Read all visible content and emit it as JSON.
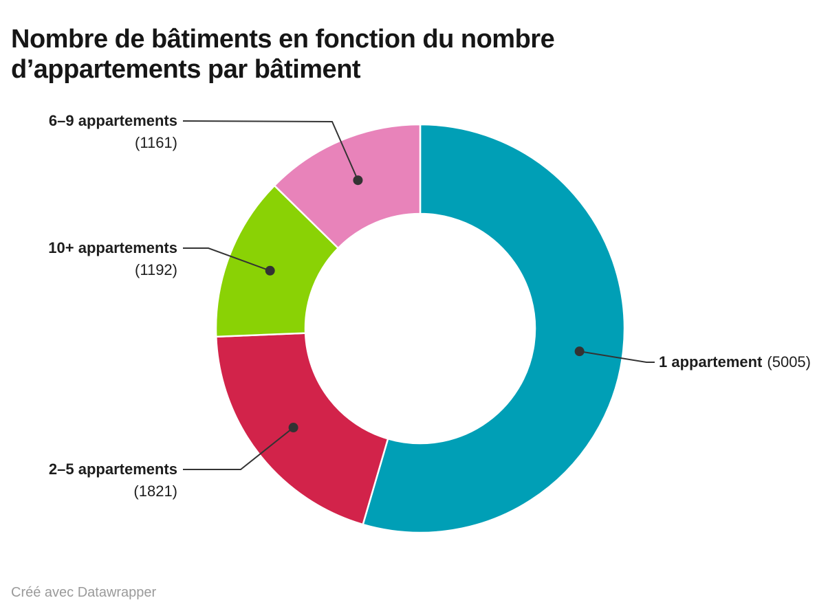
{
  "title": "Nombre de bâtiments en fonction du nombre d’appartements par bâtiment",
  "footer": "Créé avec Datawrapper",
  "chart_data": {
    "type": "pie",
    "subtype": "donut",
    "title": "Nombre de bâtiments en fonction du nombre d’appartements par bâtiment",
    "direction": "clockwise",
    "start_angle_deg": 0,
    "labels_style": "outside-with-connectors",
    "connector_color": "#333333",
    "series": [
      {
        "label": "1 appartement",
        "value": 5005,
        "value_label": "(5005)",
        "color": "#009fb6"
      },
      {
        "label": "2–5 appartements",
        "value": 1821,
        "value_label": "(1821)",
        "color": "#d2234a"
      },
      {
        "label": "10+ appartements",
        "value": 1192,
        "value_label": "(1192)",
        "color": "#8ad205"
      },
      {
        "label": "6–9 appartements",
        "value": 1161,
        "value_label": "(1161)",
        "color": "#e883ba"
      }
    ]
  }
}
